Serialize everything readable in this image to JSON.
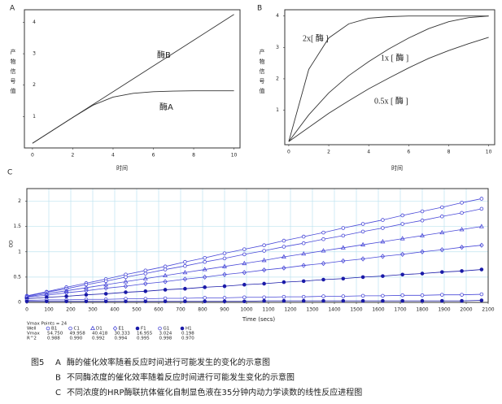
{
  "chart_data": [
    {
      "type": "line",
      "panel": "A",
      "y_label": "产物信号值",
      "x_label": "时间",
      "x": [
        0,
        1,
        2,
        3,
        4,
        5,
        6,
        7,
        8,
        9,
        10
      ],
      "xlim": [
        -0.4,
        10.3
      ],
      "xticks": [
        0,
        2,
        4,
        6,
        8,
        10
      ],
      "ylim": [
        0,
        4.4
      ],
      "yticks": [
        1,
        2,
        3,
        4
      ],
      "grid": false,
      "series": [
        {
          "name": "酶B",
          "color": "#333333",
          "values": [
            0.15,
            0.56,
            0.97,
            1.38,
            1.79,
            2.2,
            2.61,
            3.02,
            3.43,
            3.84,
            4.25
          ]
        },
        {
          "name": "酶A",
          "color": "#333333",
          "values": [
            0.15,
            0.56,
            0.97,
            1.36,
            1.62,
            1.74,
            1.79,
            1.81,
            1.82,
            1.82,
            1.82
          ]
        }
      ]
    },
    {
      "type": "line",
      "panel": "B",
      "y_label": "产物信号值",
      "x_label": "时间",
      "x": [
        0,
        1,
        2,
        3,
        4,
        5,
        6,
        7,
        8,
        9,
        10
      ],
      "xlim": [
        -0.2,
        10.3
      ],
      "xticks": [
        0,
        2,
        4,
        6,
        8,
        10
      ],
      "ylim": [
        -0.1,
        4.2
      ],
      "yticks": [
        1,
        2,
        3,
        4
      ],
      "grid": false,
      "series": [
        {
          "name": "2x[ 酶 ]",
          "color": "#333333",
          "values": [
            0,
            2.3,
            3.3,
            3.75,
            3.93,
            3.98,
            4,
            4,
            4,
            4,
            4
          ]
        },
        {
          "name": "1x [ 酶 ]",
          "color": "#333333",
          "values": [
            0,
            0.85,
            1.55,
            2.1,
            2.55,
            2.95,
            3.3,
            3.6,
            3.82,
            3.95,
            4.0
          ]
        },
        {
          "name": "0.5x [ 酶 ]",
          "color": "#333333",
          "values": [
            0,
            0.45,
            0.9,
            1.3,
            1.68,
            2.02,
            2.35,
            2.65,
            2.9,
            3.12,
            3.32
          ]
        }
      ]
    },
    {
      "type": "line",
      "panel": "C",
      "y_label": "OD",
      "x_label": "Time (secs)",
      "x": [
        0,
        90,
        180,
        270,
        360,
        450,
        540,
        630,
        720,
        810,
        900,
        990,
        1080,
        1170,
        1260,
        1350,
        1440,
        1530,
        1620,
        1710,
        1800,
        1890,
        1980,
        2070
      ],
      "xlim": [
        0,
        2100
      ],
      "xticks": [
        0,
        100,
        200,
        300,
        400,
        500,
        600,
        700,
        800,
        900,
        1000,
        1100,
        1200,
        1300,
        1400,
        1500,
        1600,
        1700,
        1800,
        1900,
        2000,
        2100
      ],
      "ylim": [
        0,
        2.25
      ],
      "yticks": [
        0,
        0.5,
        1,
        1.5,
        2
      ],
      "grid": true,
      "series": [
        {
          "name": "B1",
          "color": "#4a4ad8",
          "marker": "circle-open",
          "values": [
            0.13,
            0.21,
            0.3,
            0.38,
            0.46,
            0.55,
            0.63,
            0.71,
            0.8,
            0.88,
            0.97,
            1.05,
            1.13,
            1.22,
            1.3,
            1.38,
            1.47,
            1.55,
            1.63,
            1.72,
            1.8,
            1.88,
            1.97,
            2.05
          ]
        },
        {
          "name": "C1",
          "color": "#4a4ad8",
          "marker": "circle-open",
          "values": [
            0.12,
            0.2,
            0.27,
            0.35,
            0.42,
            0.5,
            0.57,
            0.65,
            0.72,
            0.8,
            0.87,
            0.95,
            1.02,
            1.1,
            1.17,
            1.25,
            1.32,
            1.4,
            1.47,
            1.55,
            1.62,
            1.7,
            1.77,
            1.85
          ]
        },
        {
          "name": "D1",
          "color": "#4a4ad8",
          "marker": "triangle",
          "values": [
            0.11,
            0.17,
            0.23,
            0.29,
            0.35,
            0.41,
            0.47,
            0.53,
            0.59,
            0.65,
            0.71,
            0.77,
            0.83,
            0.9,
            0.96,
            1.02,
            1.08,
            1.14,
            1.2,
            1.26,
            1.32,
            1.38,
            1.44,
            1.5
          ]
        },
        {
          "name": "E1",
          "color": "#4a4ad8",
          "marker": "diamond",
          "values": [
            0.1,
            0.14,
            0.19,
            0.23,
            0.28,
            0.32,
            0.37,
            0.41,
            0.46,
            0.5,
            0.55,
            0.59,
            0.64,
            0.68,
            0.73,
            0.77,
            0.82,
            0.86,
            0.91,
            0.95,
            1.0,
            1.04,
            1.09,
            1.13
          ]
        },
        {
          "name": "F1",
          "color": "#1a1aa8",
          "marker": "circle",
          "values": [
            0.07,
            0.1,
            0.12,
            0.15,
            0.17,
            0.2,
            0.22,
            0.25,
            0.27,
            0.3,
            0.32,
            0.35,
            0.37,
            0.4,
            0.42,
            0.45,
            0.47,
            0.5,
            0.52,
            0.55,
            0.57,
            0.6,
            0.62,
            0.65
          ]
        },
        {
          "name": "G1",
          "color": "#4a4ad8",
          "marker": "circle-open",
          "values": [
            0.04,
            0.05,
            0.05,
            0.06,
            0.06,
            0.07,
            0.07,
            0.08,
            0.08,
            0.09,
            0.09,
            0.1,
            0.1,
            0.11,
            0.11,
            0.12,
            0.12,
            0.13,
            0.13,
            0.14,
            0.14,
            0.15,
            0.15,
            0.16
          ]
        },
        {
          "name": "H1",
          "color": "#1a1aa8",
          "marker": "circle",
          "values": [
            0.02,
            0.02,
            0.02,
            0.02,
            0.02,
            0.02,
            0.02,
            0.02,
            0.02,
            0.02,
            0.02,
            0.02,
            0.03,
            0.03,
            0.03,
            0.03,
            0.03,
            0.03,
            0.03,
            0.03,
            0.03,
            0.03,
            0.03,
            0.04
          ]
        }
      ],
      "stats": {
        "title": "Vmax Points = 24",
        "well_label": "Well",
        "rows": [
          {
            "label": "Vmax",
            "values": [
              "54.750",
              "49.958",
              "40.418",
              "30.333",
              "16.955",
              "3.024",
              "0.198"
            ]
          },
          {
            "label": "R^2",
            "values": [
              "0.988",
              "0.990",
              "0.992",
              "0.994",
              "0.995",
              "0.998",
              "0.970"
            ]
          }
        ]
      }
    }
  ],
  "caption": {
    "figure_label": "图5",
    "lines": [
      {
        "label": "A",
        "text": "酶的催化效率随着反应时间进行可能发生的变化的示意图"
      },
      {
        "label": "B",
        "text": "不同酶浓度的催化效率随着反应时间进行可能发生变化的示意图"
      },
      {
        "label": "C",
        "text": "不同浓度的HRP酶联抗体催化自制显色液在35分钟内动力学读数的线性反应进程图"
      }
    ]
  }
}
